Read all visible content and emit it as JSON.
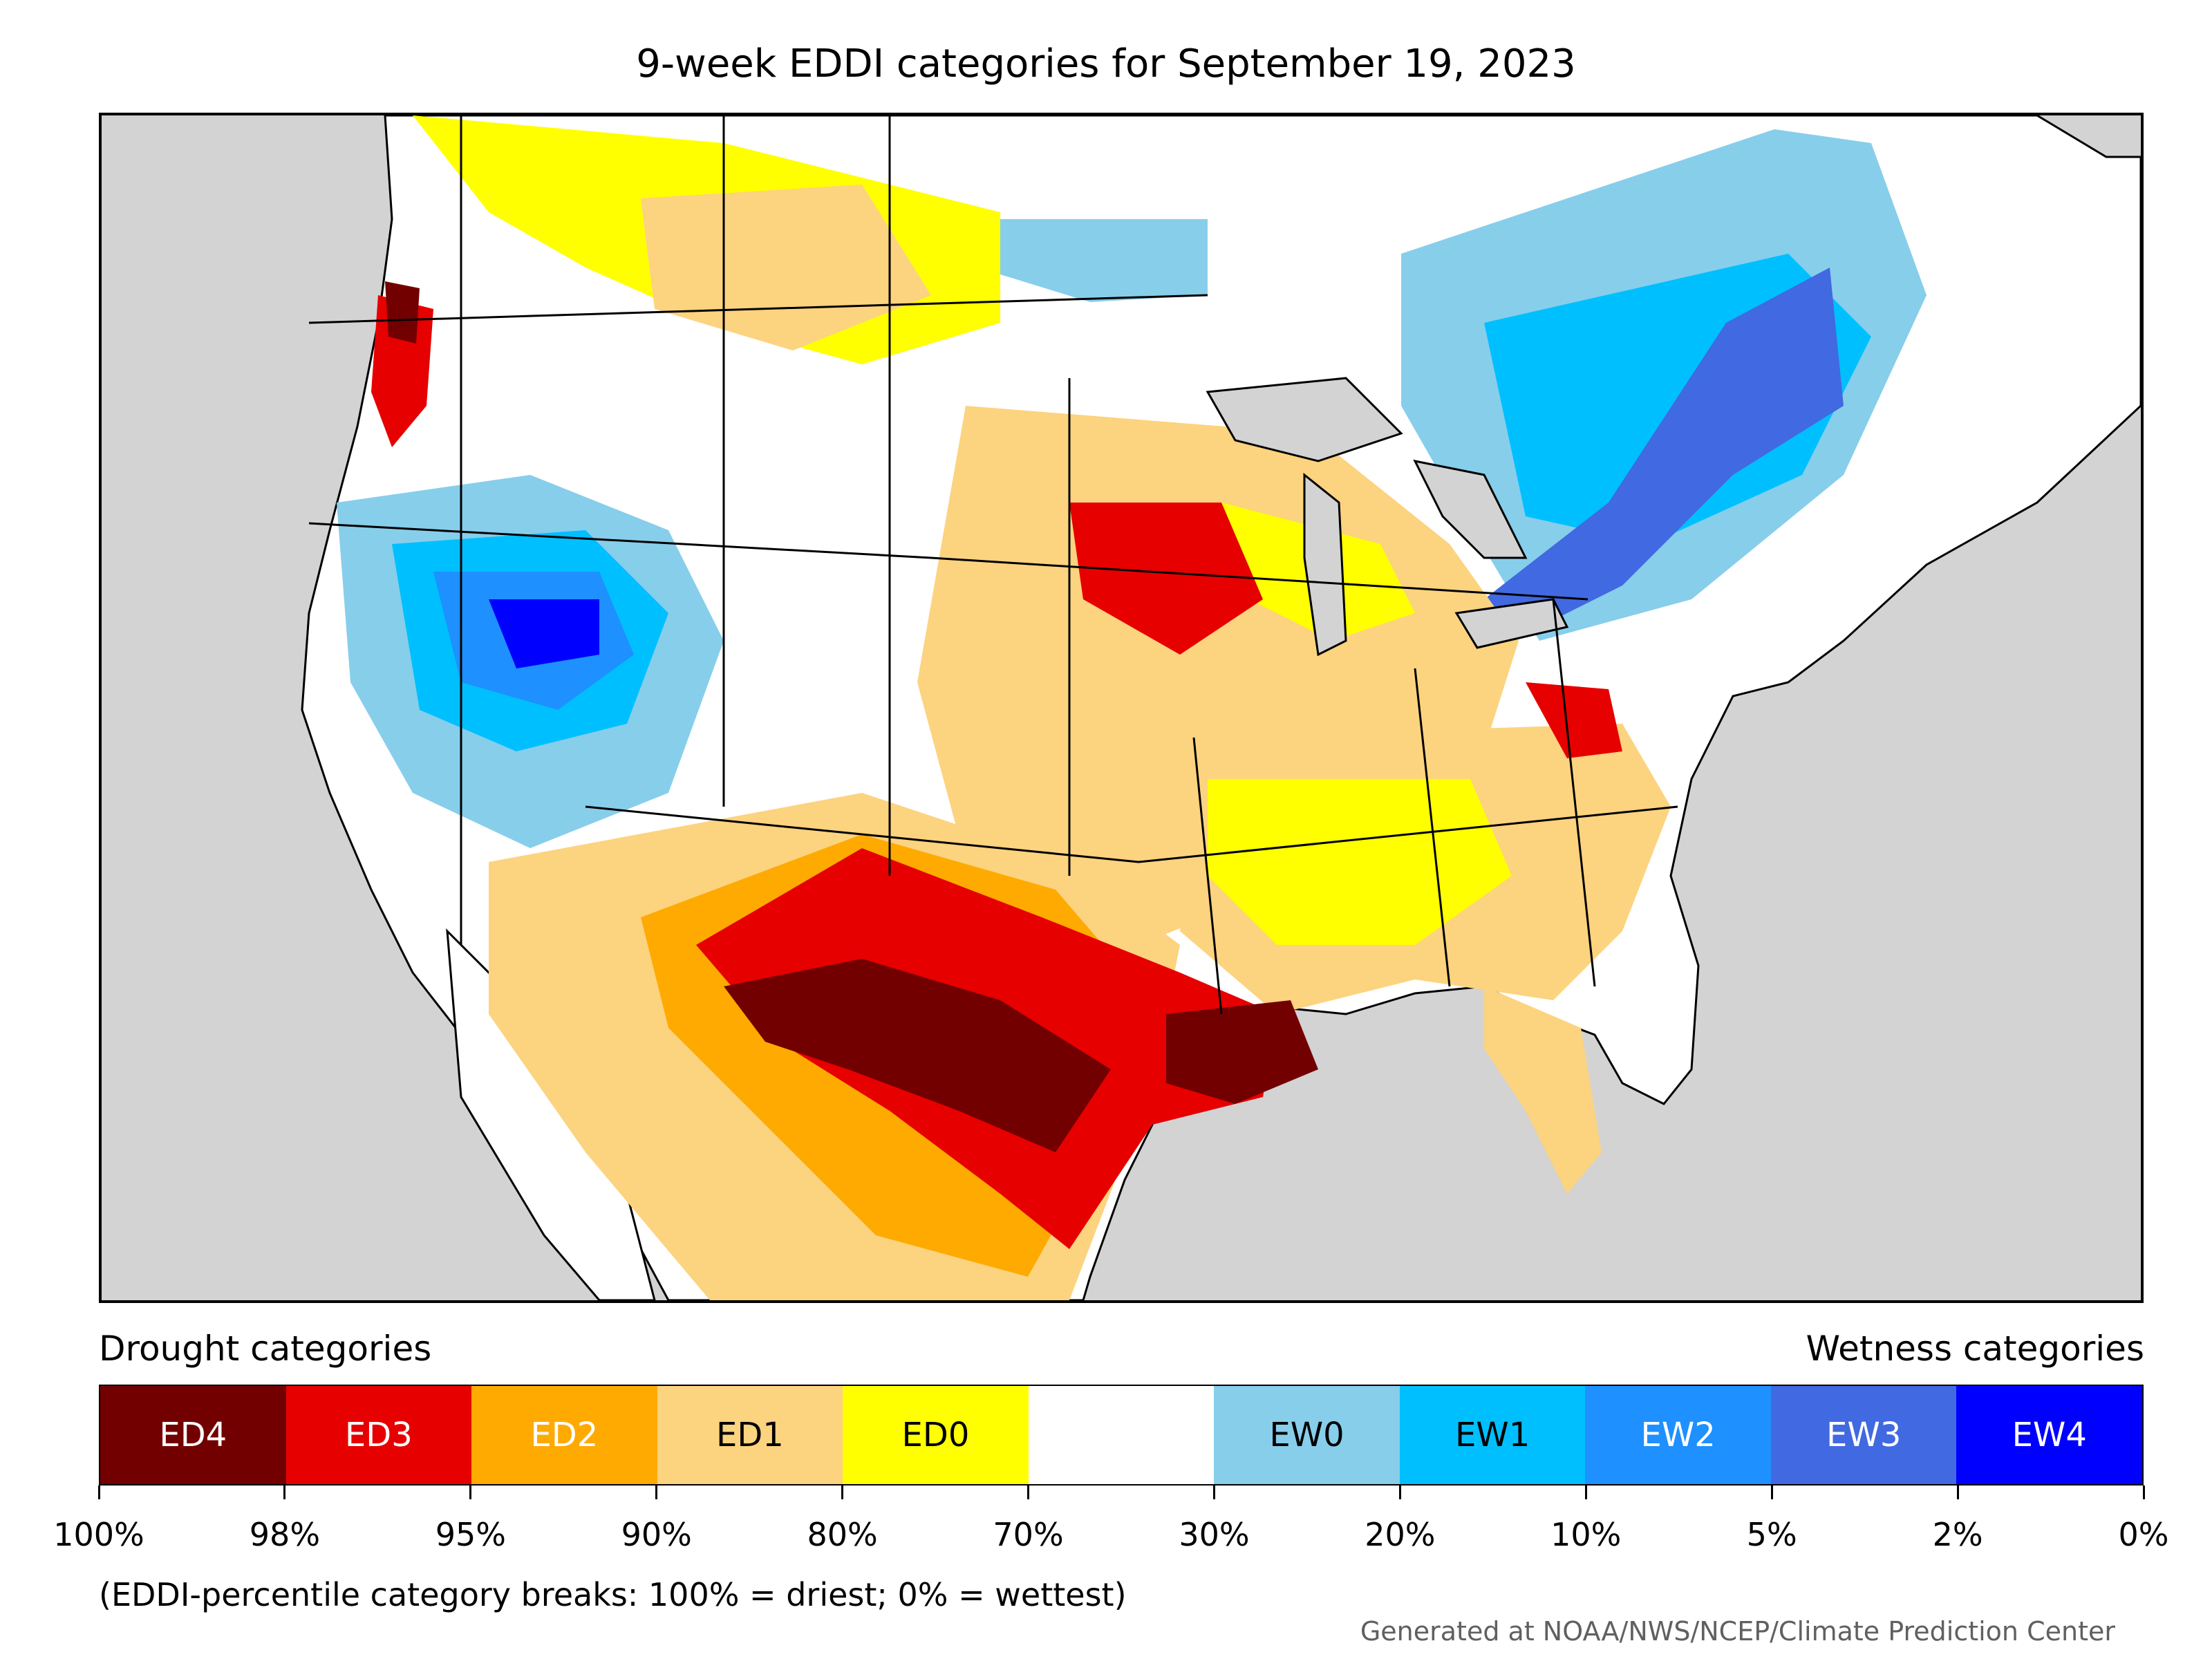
{
  "title": "9-week EDDI categories for September 19, 2023",
  "legend": {
    "drought_heading": "Drought categories",
    "wetness_heading": "Wetness categories",
    "categories": [
      {
        "label": "ED4",
        "color": "#730000",
        "text_color": "#ffffff"
      },
      {
        "label": "ED3",
        "color": "#e60000",
        "text_color": "#ffffff"
      },
      {
        "label": "ED2",
        "color": "#ffaa00",
        "text_color": "#ffffff"
      },
      {
        "label": "ED1",
        "color": "#fcd37f",
        "text_color": "#000000"
      },
      {
        "label": "ED0",
        "color": "#ffff00",
        "text_color": "#000000"
      },
      {
        "label": "",
        "color": "#ffffff",
        "text_color": "#000000"
      },
      {
        "label": "EW0",
        "color": "#87ceeb",
        "text_color": "#000000"
      },
      {
        "label": "EW1",
        "color": "#00bfff",
        "text_color": "#000000"
      },
      {
        "label": "EW2",
        "color": "#1e90ff",
        "text_color": "#ffffff"
      },
      {
        "label": "EW3",
        "color": "#4169e1",
        "text_color": "#ffffff"
      },
      {
        "label": "EW4",
        "color": "#0000ff",
        "text_color": "#ffffff"
      }
    ],
    "tick_labels": [
      "100%",
      "98%",
      "95%",
      "90%",
      "80%",
      "70%",
      "30%",
      "20%",
      "10%",
      "5%",
      "2%",
      "0%"
    ]
  },
  "footnote": "(EDDI-percentile category breaks: 100% = driest; 0% = wettest)",
  "credit": "Generated at NOAA/NWS/NCEP/Climate Prediction Center",
  "map": {
    "ocean_color": "#d3d3d3",
    "land_color": "#ffffff"
  }
}
